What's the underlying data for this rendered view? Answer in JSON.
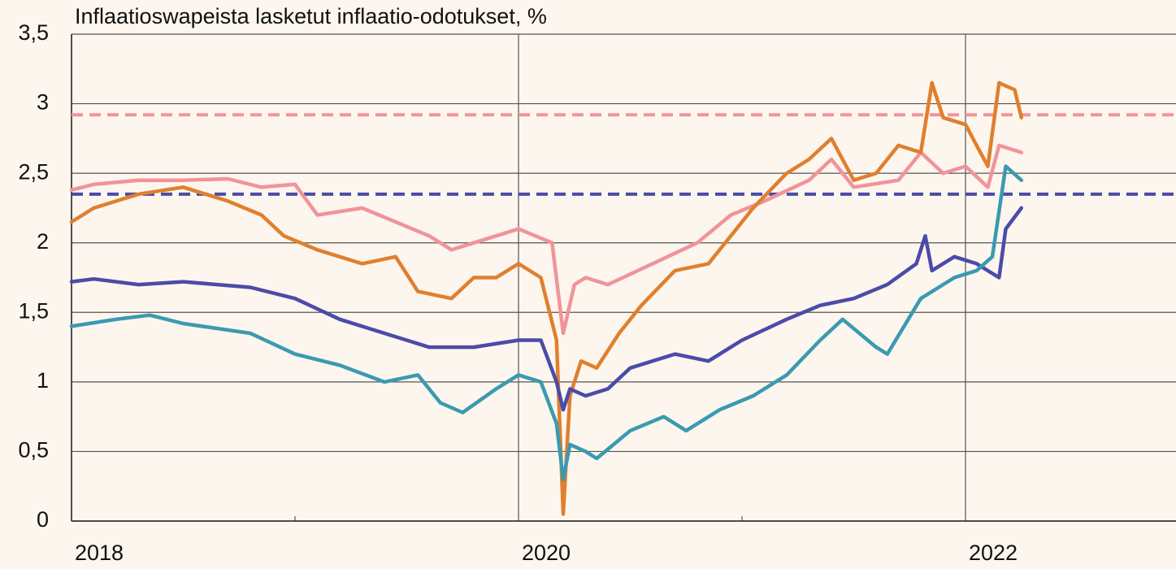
{
  "chart_data": {
    "type": "line",
    "title": "Inflaatioswapeista lasketut inflaatio-odotukset, %",
    "xlim": [
      2018,
      2023
    ],
    "xticks": [
      2018,
      2020,
      2022
    ],
    "xminor_ticks": [
      2019,
      2021
    ],
    "ylim": [
      0,
      3.5
    ],
    "yticks": [
      0,
      {
        "value": 0.5,
        "label": "0,5"
      },
      1,
      {
        "value": 1.5,
        "label": "1,5"
      },
      2,
      {
        "value": 2.5,
        "label": "2,5"
      },
      3,
      {
        "value": 3.5,
        "label": "3,5"
      }
    ],
    "grid": true,
    "reference_lines": [
      {
        "value": 2.92,
        "color": "#f0949a"
      },
      {
        "value": 2.35,
        "color": "#4b4ba8"
      }
    ],
    "series": [
      {
        "color": "#f0949a",
        "x": [
          2018.0,
          2018.1,
          2018.3,
          2018.5,
          2018.7,
          2018.85,
          2019.0,
          2019.1,
          2019.3,
          2019.45,
          2019.6,
          2019.7,
          2019.9,
          2020.0,
          2020.15,
          2020.2,
          2020.25,
          2020.3,
          2020.4,
          2020.6,
          2020.8,
          2020.95,
          2021.1,
          2021.3,
          2021.4,
          2021.5,
          2021.7,
          2021.8,
          2021.9,
          2022.0,
          2022.1,
          2022.15,
          2022.25
        ],
        "values": [
          2.38,
          2.42,
          2.45,
          2.45,
          2.46,
          2.4,
          2.42,
          2.2,
          2.25,
          2.15,
          2.05,
          1.95,
          2.05,
          2.1,
          2.0,
          1.35,
          1.7,
          1.75,
          1.7,
          1.85,
          2.0,
          2.2,
          2.3,
          2.45,
          2.6,
          2.4,
          2.45,
          2.65,
          2.5,
          2.55,
          2.4,
          2.7,
          2.65
        ]
      },
      {
        "color": "#e07f2e",
        "x": [
          2018.0,
          2018.1,
          2018.3,
          2018.5,
          2018.7,
          2018.85,
          2018.95,
          2019.1,
          2019.3,
          2019.45,
          2019.55,
          2019.7,
          2019.8,
          2019.9,
          2020.0,
          2020.1,
          2020.17,
          2020.2,
          2020.23,
          2020.28,
          2020.35,
          2020.45,
          2020.55,
          2020.7,
          2020.85,
          2020.95,
          2021.05,
          2021.2,
          2021.3,
          2021.4,
          2021.5,
          2021.6,
          2021.7,
          2021.8,
          2021.85,
          2021.9,
          2022.0,
          2022.05,
          2022.1,
          2022.15,
          2022.22,
          2022.25
        ],
        "values": [
          2.15,
          2.25,
          2.35,
          2.4,
          2.3,
          2.2,
          2.05,
          1.95,
          1.85,
          1.9,
          1.65,
          1.6,
          1.75,
          1.75,
          1.85,
          1.75,
          1.3,
          0.05,
          0.9,
          1.15,
          1.1,
          1.35,
          1.55,
          1.8,
          1.85,
          2.05,
          2.25,
          2.5,
          2.6,
          2.75,
          2.45,
          2.5,
          2.7,
          2.65,
          3.15,
          2.9,
          2.85,
          2.7,
          2.55,
          3.15,
          3.1,
          2.9
        ]
      },
      {
        "color": "#4b4ba8",
        "x": [
          2018.0,
          2018.1,
          2018.3,
          2018.5,
          2018.8,
          2019.0,
          2019.2,
          2019.4,
          2019.6,
          2019.8,
          2020.0,
          2020.1,
          2020.17,
          2020.2,
          2020.23,
          2020.3,
          2020.4,
          2020.5,
          2020.7,
          2020.85,
          2021.0,
          2021.2,
          2021.35,
          2021.5,
          2021.65,
          2021.78,
          2021.82,
          2021.85,
          2021.95,
          2022.05,
          2022.15,
          2022.18,
          2022.25
        ],
        "values": [
          1.72,
          1.74,
          1.7,
          1.72,
          1.68,
          1.6,
          1.45,
          1.35,
          1.25,
          1.25,
          1.3,
          1.3,
          1.0,
          0.8,
          0.95,
          0.9,
          0.95,
          1.1,
          1.2,
          1.15,
          1.3,
          1.45,
          1.55,
          1.6,
          1.7,
          1.85,
          2.05,
          1.8,
          1.9,
          1.85,
          1.75,
          2.1,
          2.25
        ]
      },
      {
        "color": "#3a9ab0",
        "x": [
          2018.0,
          2018.2,
          2018.35,
          2018.5,
          2018.8,
          2019.0,
          2019.2,
          2019.4,
          2019.55,
          2019.65,
          2019.75,
          2019.9,
          2020.0,
          2020.1,
          2020.17,
          2020.2,
          2020.23,
          2020.3,
          2020.35,
          2020.5,
          2020.65,
          2020.75,
          2020.9,
          2021.05,
          2021.2,
          2021.35,
          2021.45,
          2021.6,
          2021.65,
          2021.8,
          2021.95,
          2022.05,
          2022.12,
          2022.18,
          2022.25
        ],
        "values": [
          1.4,
          1.45,
          1.48,
          1.42,
          1.35,
          1.2,
          1.12,
          1.0,
          1.05,
          0.85,
          0.78,
          0.95,
          1.05,
          1.0,
          0.7,
          0.3,
          0.55,
          0.5,
          0.45,
          0.65,
          0.75,
          0.65,
          0.8,
          0.9,
          1.05,
          1.3,
          1.45,
          1.25,
          1.2,
          1.6,
          1.75,
          1.8,
          1.9,
          2.55,
          2.45
        ]
      }
    ]
  }
}
